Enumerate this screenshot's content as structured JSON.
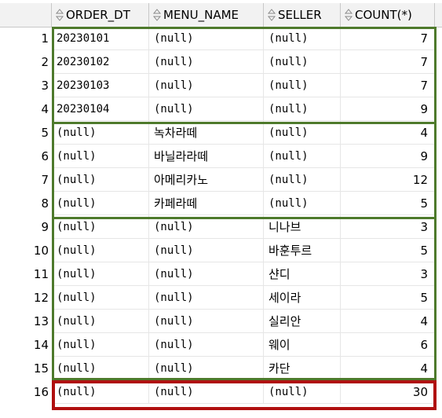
{
  "columns": [
    "ORDER_DT",
    "MENU_NAME",
    "SELLER",
    "COUNT(*)"
  ],
  "rows": [
    {
      "n": "1",
      "order_dt": "20230101",
      "menu_name": "(null)",
      "seller": "(null)",
      "count": "7"
    },
    {
      "n": "2",
      "order_dt": "20230102",
      "menu_name": "(null)",
      "seller": "(null)",
      "count": "7"
    },
    {
      "n": "3",
      "order_dt": "20230103",
      "menu_name": "(null)",
      "seller": "(null)",
      "count": "7"
    },
    {
      "n": "4",
      "order_dt": "20230104",
      "menu_name": "(null)",
      "seller": "(null)",
      "count": "9"
    },
    {
      "n": "5",
      "order_dt": "(null)",
      "menu_name": "녹차라떼",
      "seller": "(null)",
      "count": "4"
    },
    {
      "n": "6",
      "order_dt": "(null)",
      "menu_name": "바닐라라떼",
      "seller": "(null)",
      "count": "9"
    },
    {
      "n": "7",
      "order_dt": "(null)",
      "menu_name": "아메리카노",
      "seller": "(null)",
      "count": "12"
    },
    {
      "n": "8",
      "order_dt": "(null)",
      "menu_name": "카페라떼",
      "seller": "(null)",
      "count": "5"
    },
    {
      "n": "9",
      "order_dt": "(null)",
      "menu_name": "(null)",
      "seller": "니나브",
      "count": "3"
    },
    {
      "n": "10",
      "order_dt": "(null)",
      "menu_name": "(null)",
      "seller": "바훈투르",
      "count": "5"
    },
    {
      "n": "11",
      "order_dt": "(null)",
      "menu_name": "(null)",
      "seller": "샨디",
      "count": "3"
    },
    {
      "n": "12",
      "order_dt": "(null)",
      "menu_name": "(null)",
      "seller": "세이라",
      "count": "5"
    },
    {
      "n": "13",
      "order_dt": "(null)",
      "menu_name": "(null)",
      "seller": "실리안",
      "count": "4"
    },
    {
      "n": "14",
      "order_dt": "(null)",
      "menu_name": "(null)",
      "seller": "웨이",
      "count": "6"
    },
    {
      "n": "15",
      "order_dt": "(null)",
      "menu_name": "(null)",
      "seller": "카단",
      "count": "4"
    },
    {
      "n": "16",
      "order_dt": "(null)",
      "menu_name": "(null)",
      "seller": "(null)",
      "count": "30"
    }
  ],
  "highlight_colors": {
    "group": "#4e7a2c",
    "total": "#b01010"
  }
}
